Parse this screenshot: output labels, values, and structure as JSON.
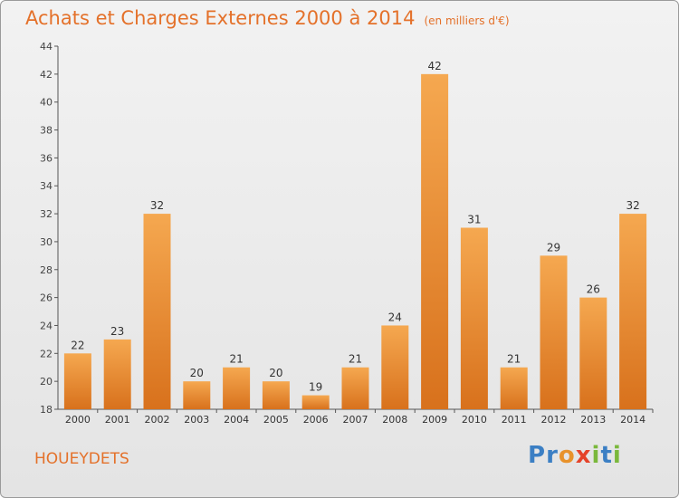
{
  "title": "Achats et Charges Externes 2000 à 2014",
  "unit": "(en milliers d'€)",
  "commune": "HOUEYDETS",
  "logo": {
    "text": "Proxiti",
    "letters": [
      "P",
      "r",
      "o",
      "x",
      "i",
      "t",
      "i"
    ],
    "colors": [
      "#3b7fc4",
      "#3b7fc4",
      "#e8922b",
      "#e5432a",
      "#7ab83c",
      "#3b7fc4",
      "#7ab83c"
    ]
  },
  "colors": {
    "bar_light": "#f5a850",
    "bar_dark": "#d8711c",
    "accent": "#e4712a",
    "axis": "#555555"
  },
  "chart_data": {
    "type": "bar",
    "title": "Achats et Charges Externes 2000 à 2014",
    "categories": [
      "2000",
      "2001",
      "2002",
      "2003",
      "2004",
      "2005",
      "2006",
      "2007",
      "2008",
      "2009",
      "2010",
      "2011",
      "2012",
      "2013",
      "2014"
    ],
    "values": [
      22,
      23,
      32,
      20,
      21,
      20,
      19,
      21,
      24,
      42,
      31,
      21,
      29,
      26,
      32
    ],
    "ylim": [
      18,
      44
    ],
    "yticks": [
      18,
      20,
      22,
      24,
      26,
      28,
      30,
      32,
      34,
      36,
      38,
      40,
      42,
      44
    ],
    "grid": false,
    "data_labels": true
  }
}
